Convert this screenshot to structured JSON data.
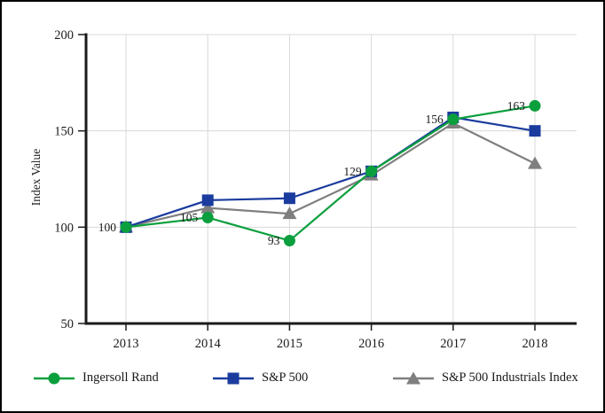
{
  "figure": {
    "background": "#FFFFFF",
    "border_color": "#000000",
    "axis_color": "#1A1A1A",
    "gridline_color": "#D8D8D8",
    "text_color": "#1A1A1A"
  },
  "chart_data": {
    "type": "line",
    "title": "",
    "xlabel": "",
    "ylabel": "Index Value",
    "categories": [
      "2013",
      "2014",
      "2015",
      "2016",
      "2017",
      "2018"
    ],
    "ylim": [
      50,
      200
    ],
    "yticks": [
      50,
      100,
      150,
      200
    ],
    "grid": true,
    "legend_position": "bottom",
    "series": [
      {
        "name": "Ingersoll Rand",
        "marker": "circle",
        "color": "#0B9F3D",
        "values": [
          100,
          105,
          93,
          129,
          156,
          163
        ],
        "show_point_labels": true
      },
      {
        "name": "S&P 500",
        "marker": "square",
        "color": "#1B3C9E",
        "values": [
          100,
          114,
          115,
          129,
          157,
          150
        ],
        "show_point_labels": false
      },
      {
        "name": "S&P 500 Industrials Index",
        "marker": "triangle",
        "color": "#7F7F7F",
        "values": [
          100,
          110,
          107,
          127,
          154,
          133
        ],
        "show_point_labels": false
      }
    ]
  }
}
